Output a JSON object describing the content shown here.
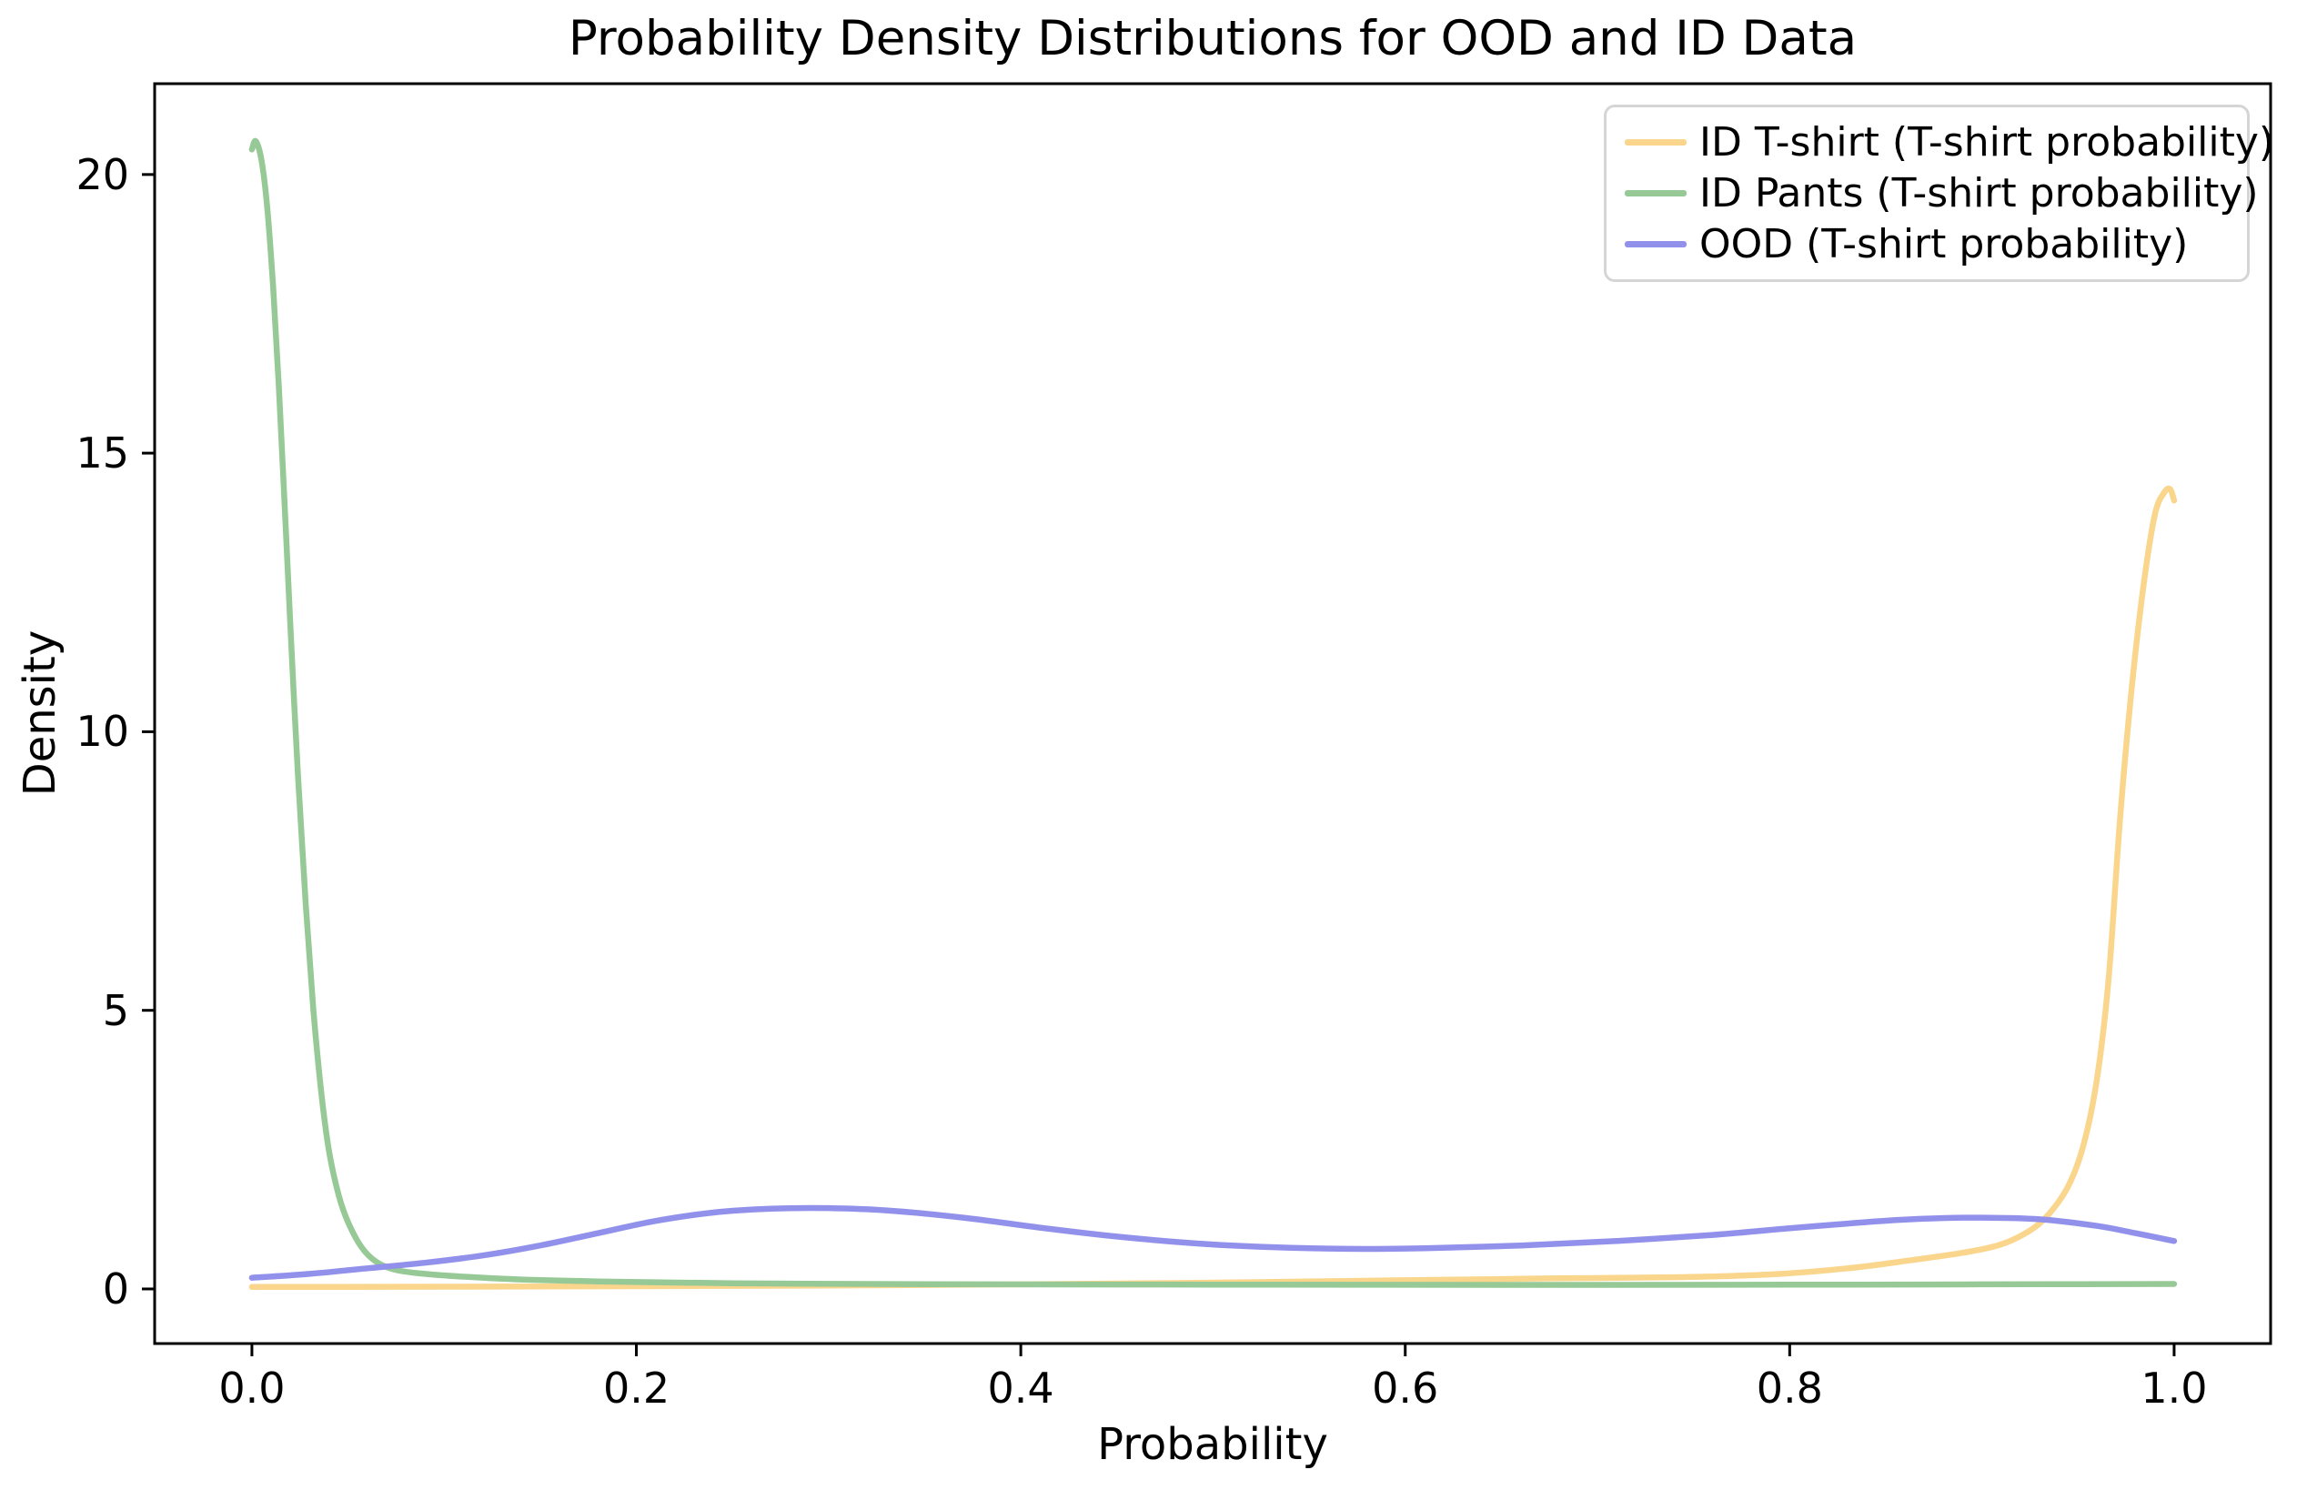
{
  "chart_data": {
    "type": "line",
    "title": "Probability Density Distributions for OOD and ID Data",
    "xlabel": "Probability",
    "ylabel": "Density",
    "x_ticks": [
      0.0,
      0.2,
      0.4,
      0.6,
      0.8,
      1.0
    ],
    "x_tick_labels": [
      "0.0",
      "0.2",
      "0.4",
      "0.6",
      "0.8",
      "1.0"
    ],
    "y_ticks": [
      0,
      5,
      10,
      15,
      20
    ],
    "y_tick_labels": [
      "0",
      "5",
      "10",
      "15",
      "20"
    ],
    "xlim": [
      -0.0506,
      1.0502
    ],
    "ylim": [
      -0.98,
      21.63
    ],
    "grid": false,
    "legend_position": "upper right",
    "series": [
      {
        "name": "ID T-shirt (T-shirt probability)",
        "color": "#fad58c",
        "points": [
          [
            0.0,
            0.035
          ],
          [
            0.1,
            0.04
          ],
          [
            0.2,
            0.048
          ],
          [
            0.3,
            0.06
          ],
          [
            0.4,
            0.082
          ],
          [
            0.48,
            0.105
          ],
          [
            0.55,
            0.135
          ],
          [
            0.62,
            0.165
          ],
          [
            0.68,
            0.19
          ],
          [
            0.74,
            0.21
          ],
          [
            0.79,
            0.26
          ],
          [
            0.83,
            0.37
          ],
          [
            0.86,
            0.5
          ],
          [
            0.89,
            0.65
          ],
          [
            0.91,
            0.8
          ],
          [
            0.925,
            1.05
          ],
          [
            0.935,
            1.35
          ],
          [
            0.945,
            1.85
          ],
          [
            0.953,
            2.6
          ],
          [
            0.96,
            3.8
          ],
          [
            0.966,
            5.6
          ],
          [
            0.972,
            8.5
          ],
          [
            0.978,
            10.8
          ],
          [
            0.984,
            12.6
          ],
          [
            0.99,
            13.9
          ],
          [
            0.995,
            14.3
          ],
          [
            0.998,
            14.35
          ],
          [
            1.0,
            14.15
          ]
        ]
      },
      {
        "name": "ID Pants (T-shirt probability)",
        "color": "#96c996",
        "points": [
          [
            0.0,
            20.45
          ],
          [
            0.002,
            20.6
          ],
          [
            0.005,
            20.25
          ],
          [
            0.008,
            19.4
          ],
          [
            0.011,
            18.0
          ],
          [
            0.014,
            16.2
          ],
          [
            0.017,
            14.1
          ],
          [
            0.02,
            11.9
          ],
          [
            0.024,
            9.2
          ],
          [
            0.028,
            6.9
          ],
          [
            0.032,
            5.0
          ],
          [
            0.036,
            3.55
          ],
          [
            0.04,
            2.5
          ],
          [
            0.045,
            1.7
          ],
          [
            0.05,
            1.2
          ],
          [
            0.057,
            0.75
          ],
          [
            0.065,
            0.48
          ],
          [
            0.075,
            0.34
          ],
          [
            0.09,
            0.27
          ],
          [
            0.11,
            0.22
          ],
          [
            0.14,
            0.17
          ],
          [
            0.18,
            0.135
          ],
          [
            0.25,
            0.1
          ],
          [
            0.35,
            0.085
          ],
          [
            0.5,
            0.078
          ],
          [
            0.65,
            0.073
          ],
          [
            0.8,
            0.076
          ],
          [
            0.9,
            0.082
          ],
          [
            1.0,
            0.09
          ]
        ]
      },
      {
        "name": "OOD (T-shirt probability)",
        "color": "#9191ec",
        "points": [
          [
            0.0,
            0.2
          ],
          [
            0.03,
            0.27
          ],
          [
            0.06,
            0.37
          ],
          [
            0.09,
            0.47
          ],
          [
            0.12,
            0.6
          ],
          [
            0.15,
            0.78
          ],
          [
            0.18,
            1.0
          ],
          [
            0.21,
            1.22
          ],
          [
            0.24,
            1.37
          ],
          [
            0.27,
            1.44
          ],
          [
            0.3,
            1.45
          ],
          [
            0.33,
            1.41
          ],
          [
            0.37,
            1.28
          ],
          [
            0.41,
            1.1
          ],
          [
            0.45,
            0.94
          ],
          [
            0.49,
            0.82
          ],
          [
            0.53,
            0.75
          ],
          [
            0.57,
            0.72
          ],
          [
            0.61,
            0.73
          ],
          [
            0.66,
            0.78
          ],
          [
            0.71,
            0.86
          ],
          [
            0.76,
            0.97
          ],
          [
            0.8,
            1.09
          ],
          [
            0.84,
            1.2
          ],
          [
            0.87,
            1.26
          ],
          [
            0.9,
            1.28
          ],
          [
            0.93,
            1.25
          ],
          [
            0.96,
            1.13
          ],
          [
            0.98,
            1.0
          ],
          [
            1.0,
            0.86
          ]
        ]
      }
    ]
  }
}
